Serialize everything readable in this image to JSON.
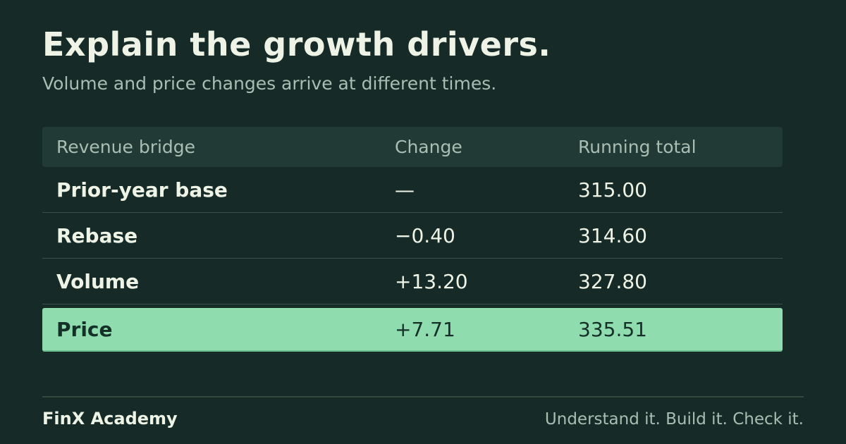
{
  "header": {
    "title": "Explain the growth drivers.",
    "subtitle": "Volume and price changes arrive at different times."
  },
  "table": {
    "columns": [
      "Revenue bridge",
      "Change",
      "Running total"
    ],
    "rows": [
      [
        "Prior-year base",
        "—",
        "315.00"
      ],
      [
        "Rebase",
        "−0.40",
        "314.60"
      ],
      [
        "Volume",
        "+13.20",
        "327.80"
      ],
      [
        "Price",
        "+7.71",
        "335.51"
      ]
    ]
  },
  "footer": {
    "brand": "FinX Academy",
    "tagline": "Understand it. Build it. Check it."
  }
}
